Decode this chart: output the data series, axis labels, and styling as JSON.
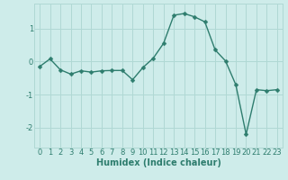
{
  "x": [
    0,
    1,
    2,
    3,
    4,
    5,
    6,
    7,
    8,
    9,
    10,
    11,
    12,
    13,
    14,
    15,
    16,
    17,
    18,
    19,
    20,
    21,
    22,
    23
  ],
  "y": [
    -0.15,
    0.08,
    -0.25,
    -0.38,
    -0.28,
    -0.32,
    -0.28,
    -0.27,
    -0.27,
    -0.55,
    -0.18,
    0.1,
    0.55,
    1.4,
    1.45,
    1.35,
    1.2,
    0.35,
    0.02,
    -0.7,
    -2.2,
    -0.85,
    -0.88,
    -0.85
  ],
  "line_color": "#2e7d6e",
  "marker": "D",
  "markersize": 2.5,
  "linewidth": 1.0,
  "background_color": "#ceecea",
  "grid_color": "#b0d8d4",
  "xlabel": "Humidex (Indice chaleur)",
  "xlabel_fontsize": 7,
  "tick_color": "#2e7d6e",
  "xlim": [
    -0.5,
    23.5
  ],
  "ylim": [
    -2.6,
    1.75
  ],
  "yticks": [
    -2,
    -1,
    0,
    1
  ],
  "xticks": [
    0,
    1,
    2,
    3,
    4,
    5,
    6,
    7,
    8,
    9,
    10,
    11,
    12,
    13,
    14,
    15,
    16,
    17,
    18,
    19,
    20,
    21,
    22,
    23
  ],
  "tick_fontsize": 6.0
}
